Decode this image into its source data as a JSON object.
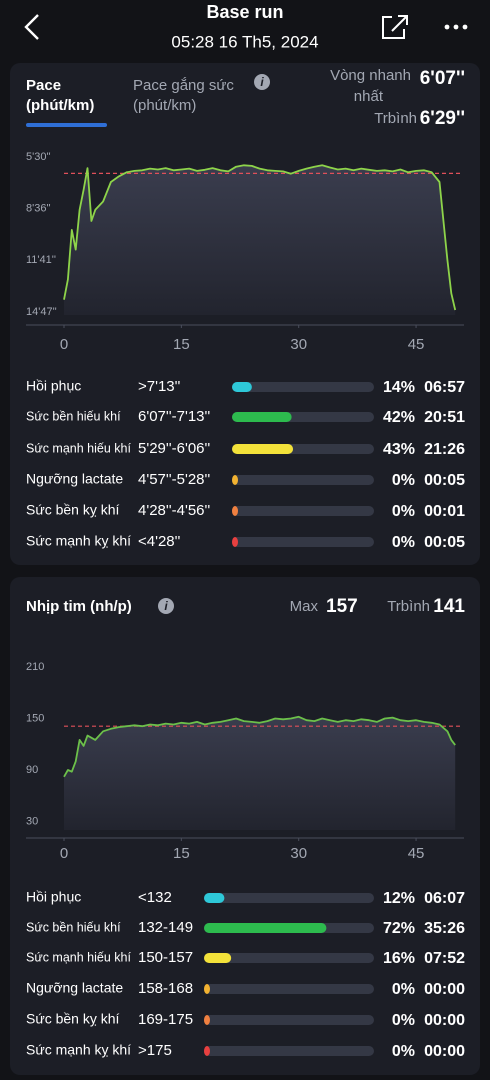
{
  "header": {
    "title": "Base run",
    "date": "05:28 16 Th5, 2024"
  },
  "pace_panel": {
    "tab1": [
      "Pace",
      "(phút/km)"
    ],
    "tab2": [
      "Pace gắng sức",
      "(phút/km)"
    ],
    "fastest_label": [
      "Vòng nhanh",
      "nhất"
    ],
    "fastest_value": "6'07''",
    "avg_label": "Trbình",
    "avg_value": "6'29''",
    "zones": [
      {
        "name": "Hồi phục",
        "range": ">7'13''",
        "percent": 14,
        "percent_label": "14%",
        "time": "06:57",
        "color": "#2ec8d8"
      },
      {
        "name": "Sức bền hiếu khí",
        "range": "6'07''-7'13''",
        "percent": 42,
        "percent_label": "42%",
        "time": "20:51",
        "color": "#2dbb4e"
      },
      {
        "name": "Sức mạnh hiếu khí",
        "range": "5'29''-6'06''",
        "percent": 43,
        "percent_label": "43%",
        "time": "21:26",
        "color": "#f3e23a"
      },
      {
        "name": "Ngưỡng lactate",
        "range": "4'57''-5'28''",
        "percent": 0,
        "percent_label": "0%",
        "time": "00:05",
        "color": "#f2b231"
      },
      {
        "name": "Sức bền kỵ khí",
        "range": "4'28''-4'56''",
        "percent": 0,
        "percent_label": "0%",
        "time": "00:01",
        "color": "#f08040"
      },
      {
        "name": "Sức mạnh kỵ khí",
        "range": "<4'28''",
        "percent": 0,
        "percent_label": "0%",
        "time": "00:05",
        "color": "#e84040"
      }
    ]
  },
  "hr_panel": {
    "title": "Nhịp tim (nh/p)",
    "max_label": "Max",
    "max_value": "157",
    "avg_label": "Trbình",
    "avg_value": "141",
    "zones": [
      {
        "name": "Hồi phục",
        "range": "<132",
        "percent": 12,
        "percent_label": "12%",
        "time": "06:07",
        "color": "#2ec8d8"
      },
      {
        "name": "Sức bền hiếu khí",
        "range": "132-149",
        "percent": 72,
        "percent_label": "72%",
        "time": "35:26",
        "color": "#2dbb4e"
      },
      {
        "name": "Sức mạnh hiếu khí",
        "range": "150-157",
        "percent": 16,
        "percent_label": "16%",
        "time": "07:52",
        "color": "#f3e23a"
      },
      {
        "name": "Ngưỡng lactate",
        "range": "158-168",
        "percent": 0,
        "percent_label": "0%",
        "time": "00:00",
        "color": "#f2b231"
      },
      {
        "name": "Sức bền kỵ khí",
        "range": "169-175",
        "percent": 0,
        "percent_label": "0%",
        "time": "00:00",
        "color": "#f08040"
      },
      {
        "name": "Sức mạnh kỵ khí",
        "range": ">175",
        "percent": 0,
        "percent_label": "0%",
        "time": "00:00",
        "color": "#e84040"
      }
    ]
  },
  "chart_data": [
    {
      "type": "line",
      "color": "#8ed44a",
      "reference_line": 389,
      "reference_color": "#e0505a",
      "xlim": [
        0,
        51
      ],
      "xticks": [
        0,
        15,
        30,
        45
      ],
      "ylim": [
        898,
        305
      ],
      "yticks": [
        {
          "value": 330,
          "label": "5'30''"
        },
        {
          "value": 516,
          "label": "8'36''"
        },
        {
          "value": 701,
          "label": "11'41''"
        },
        {
          "value": 887,
          "label": "14'47''"
        }
      ],
      "x": [
        0,
        0.5,
        1,
        1.5,
        2,
        2.5,
        3,
        3.5,
        4,
        5,
        6,
        7,
        8,
        9,
        10,
        11,
        12,
        13,
        14,
        15,
        16,
        17,
        18,
        19,
        20,
        21,
        22,
        23,
        24,
        25,
        26,
        27,
        28,
        29,
        30,
        31,
        32,
        33,
        34,
        35,
        36,
        37,
        38,
        39,
        40,
        41,
        42,
        43,
        44,
        45,
        46,
        47,
        48,
        49,
        49.5,
        50
      ],
      "values": [
        843,
        770,
        592,
        663,
        520,
        448,
        370,
        560,
        520,
        490,
        420,
        400,
        385,
        380,
        378,
        372,
        375,
        370,
        378,
        375,
        372,
        380,
        376,
        370,
        378,
        382,
        365,
        360,
        362,
        372,
        378,
        380,
        382,
        390,
        380,
        372,
        365,
        360,
        368,
        375,
        372,
        378,
        372,
        376,
        380,
        378,
        382,
        375,
        385,
        380,
        378,
        385,
        420,
        700,
        820,
        880
      ]
    },
    {
      "type": "line",
      "color": "#6cc04a",
      "reference_line": 141,
      "reference_color": "#e0505a",
      "xlim": [
        0,
        51
      ],
      "xticks": [
        0,
        15,
        30,
        45
      ],
      "ylim": [
        20,
        224
      ],
      "yticks": [
        210,
        150,
        90,
        30
      ],
      "x": [
        0,
        0.5,
        1,
        1.5,
        2,
        2.5,
        3,
        4,
        5,
        6,
        7,
        8,
        9,
        10,
        11,
        12,
        13,
        14,
        15,
        16,
        17,
        18,
        19,
        20,
        21,
        22,
        23,
        24,
        25,
        26,
        27,
        28,
        29,
        30,
        31,
        32,
        33,
        34,
        35,
        36,
        37,
        38,
        39,
        40,
        41,
        42,
        43,
        44,
        45,
        46,
        47,
        48,
        49,
        49.5,
        50
      ],
      "values": [
        82,
        90,
        88,
        100,
        125,
        118,
        130,
        125,
        135,
        138,
        140,
        141,
        142,
        141,
        143,
        142,
        144,
        143,
        145,
        144,
        146,
        143,
        145,
        146,
        148,
        150,
        147,
        146,
        145,
        147,
        150,
        149,
        150,
        152,
        148,
        147,
        150,
        148,
        146,
        148,
        147,
        149,
        148,
        146,
        150,
        151,
        148,
        147,
        148,
        146,
        145,
        143,
        135,
        125,
        119
      ]
    }
  ]
}
